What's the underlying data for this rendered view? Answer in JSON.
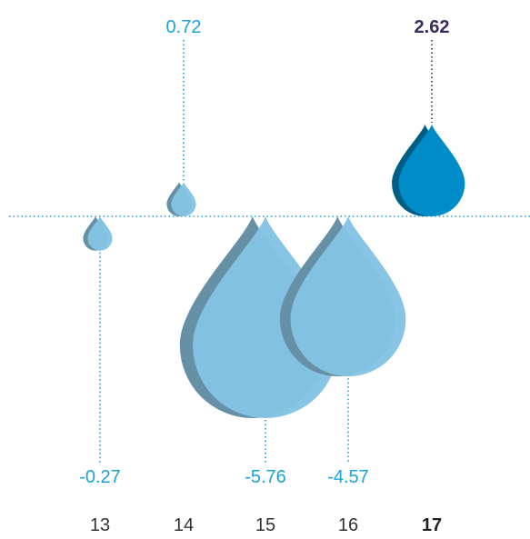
{
  "chart_data": {
    "type": "bar",
    "title": "",
    "xlabel": "",
    "ylabel": "",
    "categories": [
      "13",
      "14",
      "15",
      "16",
      "17"
    ],
    "values": [
      -0.27,
      0.72,
      -5.76,
      -4.57,
      2.62
    ],
    "value_labels": [
      "-0.27",
      "0.72",
      "-5.76",
      "-4.57",
      "2.62"
    ],
    "highlight_index": 4,
    "baseline": 0,
    "grid": false,
    "legend": "none",
    "mark_shape": "water-drop"
  },
  "colors": {
    "normal_fill": "#84c2e2",
    "normal_side": "#6590a6",
    "highlight_fill": "#008bc9",
    "highlight_side": "#005e86",
    "label_normal": "#1aa3d9",
    "label_highlight": "#3a2a5e",
    "category_text": "#333333",
    "baseline": "#1aa3d9"
  }
}
